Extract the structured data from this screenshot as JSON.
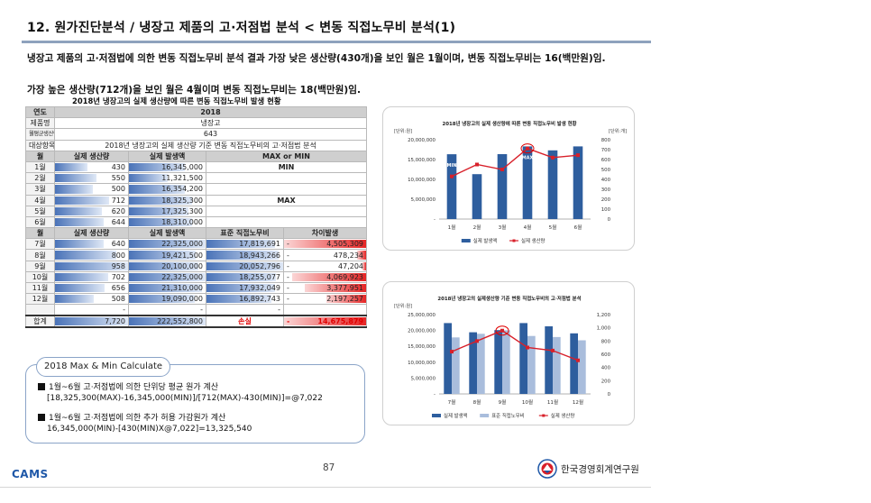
{
  "header": {
    "title": "12.  원가진단분석 / 냉장고 제품의 고·저점법 분석 < 변동 직접노무비 분석(1)",
    "intro_line1": "냉장고 제품의 고·저점법에 의한 변동 직접노무비 분석 결과  가장 낮은 생산량(430개)을 보인 월은 1월이며, 변동 직접노무비는 16(백만원)임.",
    "intro_line2": "가장 높은 생산량(712개)을 보인 월은 4월이며 변동 직접노무비는 18(백만원)임."
  },
  "table": {
    "caption": "2018년 냉장고의 실제 생산량에 따른 변동 직접노무비 발생 현황",
    "info": [
      {
        "label": "연도",
        "value": "2018"
      },
      {
        "label": "제품명",
        "value": "냉장고"
      },
      {
        "label": "월평균생산량",
        "value": "643"
      },
      {
        "label": "대상항목",
        "value": "2018년 냉장고의 실제 생산량 기준 변동 직접노무비의 고·저점법 분석"
      }
    ],
    "header1": {
      "month": "월",
      "qty": "실제 생산량",
      "cost": "실제 발생액",
      "mark": "MAX or MIN"
    },
    "rows1": [
      {
        "month": "1월",
        "qty": "430",
        "cost": "16,345,000",
        "mark": "MIN",
        "qty_v": 430,
        "cost_v": 16345000
      },
      {
        "month": "2월",
        "qty": "550",
        "cost": "11,321,500",
        "mark": "",
        "qty_v": 550,
        "cost_v": 11321500
      },
      {
        "month": "3월",
        "qty": "500",
        "cost": "16,354,200",
        "mark": "",
        "qty_v": 500,
        "cost_v": 16354200
      },
      {
        "month": "4월",
        "qty": "712",
        "cost": "18,325,300",
        "mark": "MAX",
        "qty_v": 712,
        "cost_v": 18325300
      },
      {
        "month": "5월",
        "qty": "620",
        "cost": "17,325,300",
        "mark": "",
        "qty_v": 620,
        "cost_v": 17325300
      },
      {
        "month": "6월",
        "qty": "644",
        "cost": "18,310,000",
        "mark": "",
        "qty_v": 644,
        "cost_v": 18310000
      }
    ],
    "header2": {
      "month": "월",
      "qty": "실제 생산량",
      "cost": "실제 발생액",
      "std": "표준 직접노무비",
      "diff": "차이발생"
    },
    "rows2": [
      {
        "month": "7월",
        "qty": "640",
        "cost": "22,325,000",
        "std": "17,819,691",
        "sign": "-",
        "diff": "4,505,309",
        "qty_v": 640,
        "cost_v": 22325000,
        "std_v": 17819691,
        "diff_v": 4505309
      },
      {
        "month": "8월",
        "qty": "800",
        "cost": "19,421,500",
        "std": "18,943,266",
        "sign": "-",
        "diff": "478,234",
        "qty_v": 800,
        "cost_v": 19421500,
        "std_v": 18943266,
        "diff_v": 478234
      },
      {
        "month": "9월",
        "qty": "958",
        "cost": "20,100,000",
        "std": "20,052,796",
        "sign": "-",
        "diff": "47,204",
        "qty_v": 958,
        "cost_v": 20100000,
        "std_v": 20052796,
        "diff_v": 47204
      },
      {
        "month": "10월",
        "qty": "702",
        "cost": "22,325,000",
        "std": "18,255,077",
        "sign": "-",
        "diff": "4,069,923",
        "qty_v": 702,
        "cost_v": 22325000,
        "std_v": 18255077,
        "diff_v": 4069923
      },
      {
        "month": "11월",
        "qty": "656",
        "cost": "21,310,000",
        "std": "17,932,049",
        "sign": "-",
        "diff": "3,377,951",
        "qty_v": 656,
        "cost_v": 21310000,
        "std_v": 17932049,
        "diff_v": 3377951
      },
      {
        "month": "12월",
        "qty": "508",
        "cost": "19,090,000",
        "std": "16,892,743",
        "sign": "-",
        "diff": "2,197,257",
        "qty_v": 508,
        "cost_v": 19090000,
        "std_v": 16892743,
        "diff_v": 2197257
      }
    ],
    "blank_row": {
      "qty": "-",
      "cost": "-",
      "std": "-"
    },
    "total": {
      "label": "합계",
      "qty": "7,720",
      "cost": "222,552,800",
      "loss": "손실",
      "sign": "-",
      "diff": "14,675,879"
    }
  },
  "calc": {
    "title": "2018 Max & Min Calculate",
    "item1_line1": "1월~6월 고·저점법에 의한 단위당 평균 원가 계산",
    "item1_line2": "[18,325,300(MAX)-16,345,000(MIN)]/[712(MAX)-430(MIN)]=@7,022",
    "item2_line1": "1월~6월 고·저점법에 의한 추가 허용 가감원가 계산",
    "item2_line2": "16,345,000(MIN)-[430(MIN)X@7,022]=13,325,540"
  },
  "chart_data": [
    {
      "type": "bar",
      "title": "2018년 냉장고의 실제 생산량에 따른 변동 직접노무비 발생 현황",
      "left_unit": "[단위:원]",
      "right_unit": "[단위:개]",
      "categories": [
        "1월",
        "2월",
        "3월",
        "4월",
        "5월",
        "6월"
      ],
      "left_ticks": [
        "20,000,000",
        "15,000,000",
        "10,000,000",
        "5,000,000",
        "-"
      ],
      "left_tick_values": [
        20000000,
        15000000,
        10000000,
        5000000,
        0
      ],
      "right_ticks": [
        "800",
        "700",
        "600",
        "500",
        "400",
        "300",
        "200",
        "100",
        "0"
      ],
      "right_tick_values": [
        800,
        700,
        600,
        500,
        400,
        300,
        200,
        100,
        0
      ],
      "ylim": [
        0,
        20000000
      ],
      "y2lim": [
        0,
        800
      ],
      "series": [
        {
          "name": "실제 발생액",
          "kind": "bar",
          "axis": "left",
          "color": "#2e5e9e",
          "values": [
            16345000,
            11321500,
            16354200,
            18325300,
            17325300,
            18310000
          ]
        },
        {
          "name": "실제 생산량",
          "kind": "line",
          "axis": "right",
          "color": "#d8202a",
          "values": [
            430,
            550,
            500,
            712,
            620,
            644
          ]
        }
      ],
      "annotations": [
        {
          "text": "MIN",
          "category": "1월"
        },
        {
          "text": "MAX",
          "category": "4월"
        }
      ],
      "legend": "bottom"
    },
    {
      "type": "bar",
      "title": "2018년 냉장고의 실제생산량 기준 변동 직접노무비의 고·저점법 분석",
      "left_unit": "[단위:원]",
      "categories": [
        "7월",
        "8월",
        "9월",
        "10월",
        "11월",
        "12월"
      ],
      "left_ticks": [
        "25,000,000",
        "20,000,000",
        "15,000,000",
        "10,000,000",
        "5,000,000",
        "-"
      ],
      "left_tick_values": [
        25000000,
        20000000,
        15000000,
        10000000,
        5000000,
        0
      ],
      "right_ticks": [
        "1,200",
        "1,000",
        "800",
        "600",
        "400",
        "200",
        "0"
      ],
      "right_tick_values": [
        1200,
        1000,
        800,
        600,
        400,
        200,
        0
      ],
      "ylim": [
        0,
        25000000
      ],
      "y2lim": [
        0,
        1200
      ],
      "series": [
        {
          "name": "실제 발생액",
          "kind": "bar",
          "axis": "left",
          "color": "#2e5e9e",
          "values": [
            22325000,
            19421500,
            20100000,
            22325000,
            21310000,
            19090000
          ]
        },
        {
          "name": "표준 직접노무비",
          "kind": "bar",
          "axis": "left",
          "color": "#a9bddc",
          "values": [
            17819691,
            18943266,
            20052796,
            18255077,
            17932049,
            16892743
          ]
        },
        {
          "name": "실제 생산량",
          "kind": "line",
          "axis": "right",
          "color": "#d8202a",
          "values": [
            640,
            800,
            958,
            702,
            656,
            508
          ]
        }
      ],
      "legend": "bottom"
    }
  ],
  "footer": {
    "page": "87",
    "brand": "CAMS",
    "org": "한국경영회계연구원"
  }
}
